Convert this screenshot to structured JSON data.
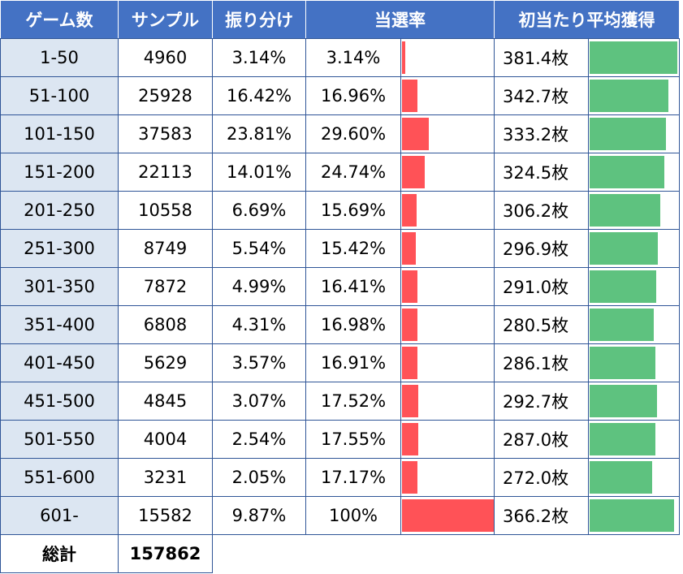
{
  "headers": {
    "game": "ゲーム数",
    "sample": "サンプル",
    "distribution": "振り分け",
    "hit_rate": "当選率",
    "avg_gain": "初当たり平均獲得"
  },
  "rows": [
    {
      "game": "1-50",
      "sample": "4960",
      "distribution": "3.14%",
      "hit_rate": "3.14%",
      "avg_gain": "381.4枚"
    },
    {
      "game": "51-100",
      "sample": "25928",
      "distribution": "16.42%",
      "hit_rate": "16.96%",
      "avg_gain": "342.7枚"
    },
    {
      "game": "101-150",
      "sample": "37583",
      "distribution": "23.81%",
      "hit_rate": "29.60%",
      "avg_gain": "333.2枚"
    },
    {
      "game": "151-200",
      "sample": "22113",
      "distribution": "14.01%",
      "hit_rate": "24.74%",
      "avg_gain": "324.5枚"
    },
    {
      "game": "201-250",
      "sample": "10558",
      "distribution": "6.69%",
      "hit_rate": "15.69%",
      "avg_gain": "306.2枚"
    },
    {
      "game": "251-300",
      "sample": "8749",
      "distribution": "5.54%",
      "hit_rate": "15.42%",
      "avg_gain": "296.9枚"
    },
    {
      "game": "301-350",
      "sample": "7872",
      "distribution": "4.99%",
      "hit_rate": "16.41%",
      "avg_gain": "291.0枚"
    },
    {
      "game": "351-400",
      "sample": "6808",
      "distribution": "4.31%",
      "hit_rate": "16.98%",
      "avg_gain": "280.5枚"
    },
    {
      "game": "401-450",
      "sample": "5629",
      "distribution": "3.57%",
      "hit_rate": "16.91%",
      "avg_gain": "286.1枚"
    },
    {
      "game": "451-500",
      "sample": "4845",
      "distribution": "3.07%",
      "hit_rate": "17.52%",
      "avg_gain": "292.7枚"
    },
    {
      "game": "501-550",
      "sample": "4004",
      "distribution": "2.54%",
      "hit_rate": "17.55%",
      "avg_gain": "287.0枚"
    },
    {
      "game": "551-600",
      "sample": "3231",
      "distribution": "2.05%",
      "hit_rate": "17.17%",
      "avg_gain": "272.0枚"
    },
    {
      "game": "601-",
      "sample": "15582",
      "distribution": "9.87%",
      "hit_rate": "100%",
      "avg_gain": "366.2枚"
    }
  ],
  "total": {
    "label": "総計",
    "sample": "157862"
  },
  "colors": {
    "header_bg": "#4472c4",
    "game_col_bg": "#dce6f2",
    "hit_bar": "#ff5257",
    "gain_bar": "#5ec27f",
    "border": "#2f5597"
  },
  "chart_data": {
    "type": "table",
    "columns": [
      "ゲーム数",
      "サンプル",
      "振り分け",
      "当選率",
      "初当たり平均獲得"
    ],
    "categories": [
      "1-50",
      "51-100",
      "101-150",
      "151-200",
      "201-250",
      "251-300",
      "301-350",
      "351-400",
      "401-450",
      "451-500",
      "501-550",
      "551-600",
      "601-"
    ],
    "series": [
      {
        "name": "サンプル",
        "values": [
          4960,
          25928,
          37583,
          22113,
          10558,
          8749,
          7872,
          6808,
          5629,
          4845,
          4004,
          3231,
          15582
        ]
      },
      {
        "name": "振り分け",
        "values": [
          3.14,
          16.42,
          23.81,
          14.01,
          6.69,
          5.54,
          4.99,
          4.31,
          3.57,
          3.07,
          2.54,
          2.05,
          9.87
        ]
      },
      {
        "name": "当選率",
        "values": [
          3.14,
          16.96,
          29.6,
          24.74,
          15.69,
          15.42,
          16.41,
          16.98,
          16.91,
          17.52,
          17.55,
          17.17,
          100
        ]
      },
      {
        "name": "初当たり平均獲得",
        "values": [
          381.4,
          342.7,
          333.2,
          324.5,
          306.2,
          296.9,
          291.0,
          280.5,
          286.1,
          292.7,
          287.0,
          272.0,
          366.2
        ]
      }
    ],
    "total_sample": 157862
  }
}
